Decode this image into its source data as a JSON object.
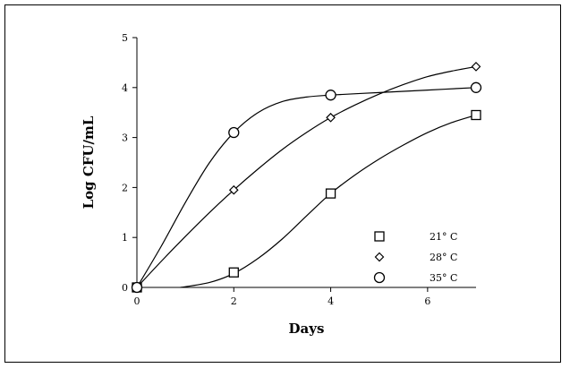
{
  "chart_data": {
    "type": "line",
    "title": "",
    "xlabel": "Days",
    "ylabel": "Log CFU/mL",
    "xlim": [
      0,
      7
    ],
    "ylim": [
      0,
      5
    ],
    "x_ticks": [
      0,
      2,
      4,
      6
    ],
    "y_ticks": [
      0,
      1,
      2,
      3,
      4,
      5
    ],
    "grid": false,
    "legend_position": "bottom-right",
    "series": [
      {
        "name": "21° C",
        "marker": "square",
        "points": [
          {
            "x": 0,
            "y": 0
          },
          {
            "x": 2,
            "y": 0.3
          },
          {
            "x": 4,
            "y": 1.88
          },
          {
            "x": 7,
            "y": 3.45
          }
        ],
        "fit": [
          {
            "x": 0.9,
            "y": 0.0
          },
          {
            "x": 1.5,
            "y": 0.1
          },
          {
            "x": 2.0,
            "y": 0.28
          },
          {
            "x": 2.5,
            "y": 0.58
          },
          {
            "x": 3.0,
            "y": 0.97
          },
          {
            "x": 3.5,
            "y": 1.43
          },
          {
            "x": 4.0,
            "y": 1.88
          },
          {
            "x": 4.5,
            "y": 2.25
          },
          {
            "x": 5.0,
            "y": 2.57
          },
          {
            "x": 5.5,
            "y": 2.85
          },
          {
            "x": 6.0,
            "y": 3.1
          },
          {
            "x": 6.5,
            "y": 3.3
          },
          {
            "x": 7.0,
            "y": 3.45
          }
        ]
      },
      {
        "name": "28° C",
        "marker": "diamond",
        "points": [
          {
            "x": 0,
            "y": 0
          },
          {
            "x": 2,
            "y": 1.95
          },
          {
            "x": 4,
            "y": 3.4
          },
          {
            "x": 7,
            "y": 4.42
          }
        ],
        "fit": [
          {
            "x": 0.0,
            "y": 0.0
          },
          {
            "x": 0.5,
            "y": 0.52
          },
          {
            "x": 1.0,
            "y": 1.02
          },
          {
            "x": 1.5,
            "y": 1.5
          },
          {
            "x": 2.0,
            "y": 1.95
          },
          {
            "x": 2.5,
            "y": 2.37
          },
          {
            "x": 3.0,
            "y": 2.76
          },
          {
            "x": 3.5,
            "y": 3.1
          },
          {
            "x": 4.0,
            "y": 3.4
          },
          {
            "x": 4.5,
            "y": 3.65
          },
          {
            "x": 5.0,
            "y": 3.87
          },
          {
            "x": 5.5,
            "y": 4.06
          },
          {
            "x": 6.0,
            "y": 4.22
          },
          {
            "x": 6.5,
            "y": 4.33
          },
          {
            "x": 7.0,
            "y": 4.42
          }
        ]
      },
      {
        "name": "35° C",
        "marker": "circle",
        "points": [
          {
            "x": 0,
            "y": 0
          },
          {
            "x": 2,
            "y": 3.1
          },
          {
            "x": 4,
            "y": 3.85
          },
          {
            "x": 7,
            "y": 4.0
          }
        ],
        "fit": [
          {
            "x": 0.0,
            "y": 0.0
          },
          {
            "x": 0.5,
            "y": 0.82
          },
          {
            "x": 1.0,
            "y": 1.7
          },
          {
            "x": 1.5,
            "y": 2.5
          },
          {
            "x": 2.0,
            "y": 3.1
          },
          {
            "x": 2.5,
            "y": 3.5
          },
          {
            "x": 3.0,
            "y": 3.72
          },
          {
            "x": 3.5,
            "y": 3.81
          },
          {
            "x": 4.0,
            "y": 3.85
          },
          {
            "x": 5.0,
            "y": 3.9
          },
          {
            "x": 6.0,
            "y": 3.95
          },
          {
            "x": 7.0,
            "y": 4.0
          }
        ]
      }
    ]
  }
}
